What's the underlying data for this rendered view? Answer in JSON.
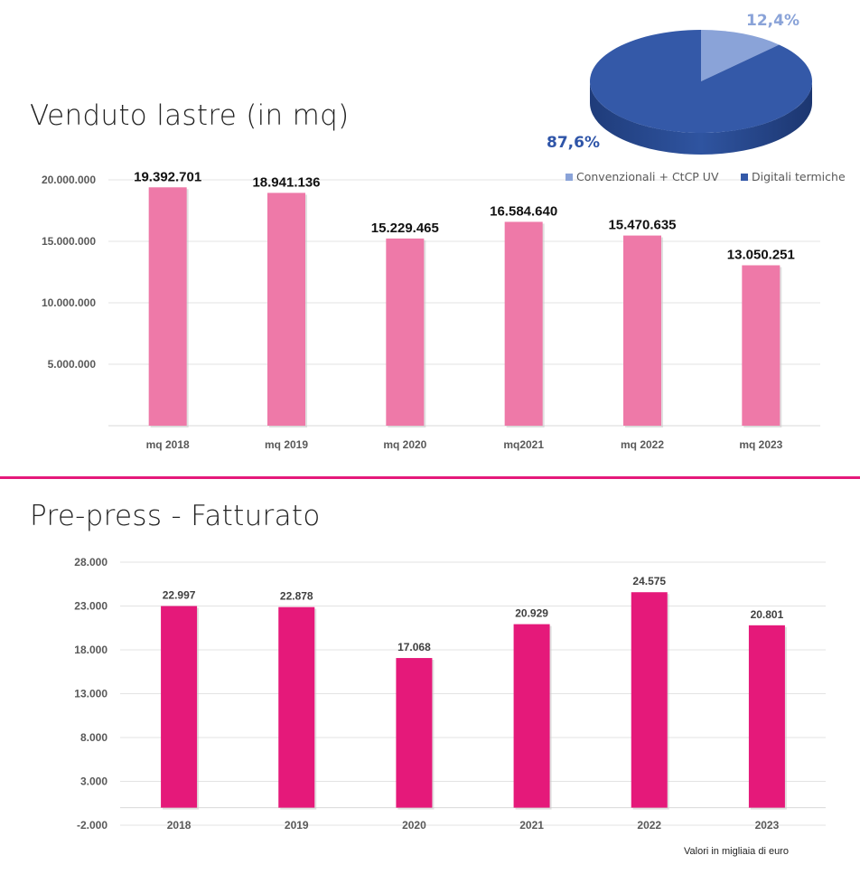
{
  "chart_data": [
    {
      "type": "bar",
      "title": "Venduto lastre (in mq)",
      "categories": [
        "mq 2018",
        "mq 2019",
        "mq 2020",
        "mq2021",
        "mq 2022",
        "mq 2023"
      ],
      "values": [
        19392701,
        18941136,
        15229465,
        16584640,
        15470635,
        13050251
      ],
      "data_labels": [
        "19.392.701",
        "18.941.136",
        "15.229.465",
        "16.584.640",
        "15.470.635",
        "13.050.251"
      ],
      "yticks": [
        5000000,
        10000000,
        15000000,
        20000000
      ],
      "ytick_labels": [
        "5.000.000",
        "10.000.000",
        "15.000.000",
        "20.000.000"
      ],
      "ylim": [
        0,
        20000000
      ],
      "color": "#ee79a8",
      "grid": true
    },
    {
      "type": "pie",
      "categories": [
        "Convenzionali + CtCP UV",
        "Digitali termiche"
      ],
      "values": [
        12.4,
        87.6
      ],
      "data_labels": [
        "12,4%",
        "87,6%"
      ],
      "colors": [
        "#8aa3d8",
        "#3459a8"
      ],
      "legend": "bottom"
    },
    {
      "type": "bar",
      "title": "Pre-press - Fatturato",
      "categories": [
        "2018",
        "2019",
        "2020",
        "2021",
        "2022",
        "2023"
      ],
      "values": [
        22997,
        22878,
        17068,
        20929,
        24575,
        20801
      ],
      "data_labels": [
        "22.997",
        "22.878",
        "17.068",
        "20.929",
        "24.575",
        "20.801"
      ],
      "yticks": [
        -2000,
        3000,
        8000,
        13000,
        18000,
        23000,
        28000
      ],
      "ytick_labels": [
        "-2.000",
        "3.000",
        "8.000",
        "13.000",
        "18.000",
        "23.000",
        "28.000"
      ],
      "ylim": [
        -2000,
        28000
      ],
      "color": "#e5197a",
      "grid": true,
      "note": "Valori in migliaia di euro"
    }
  ]
}
